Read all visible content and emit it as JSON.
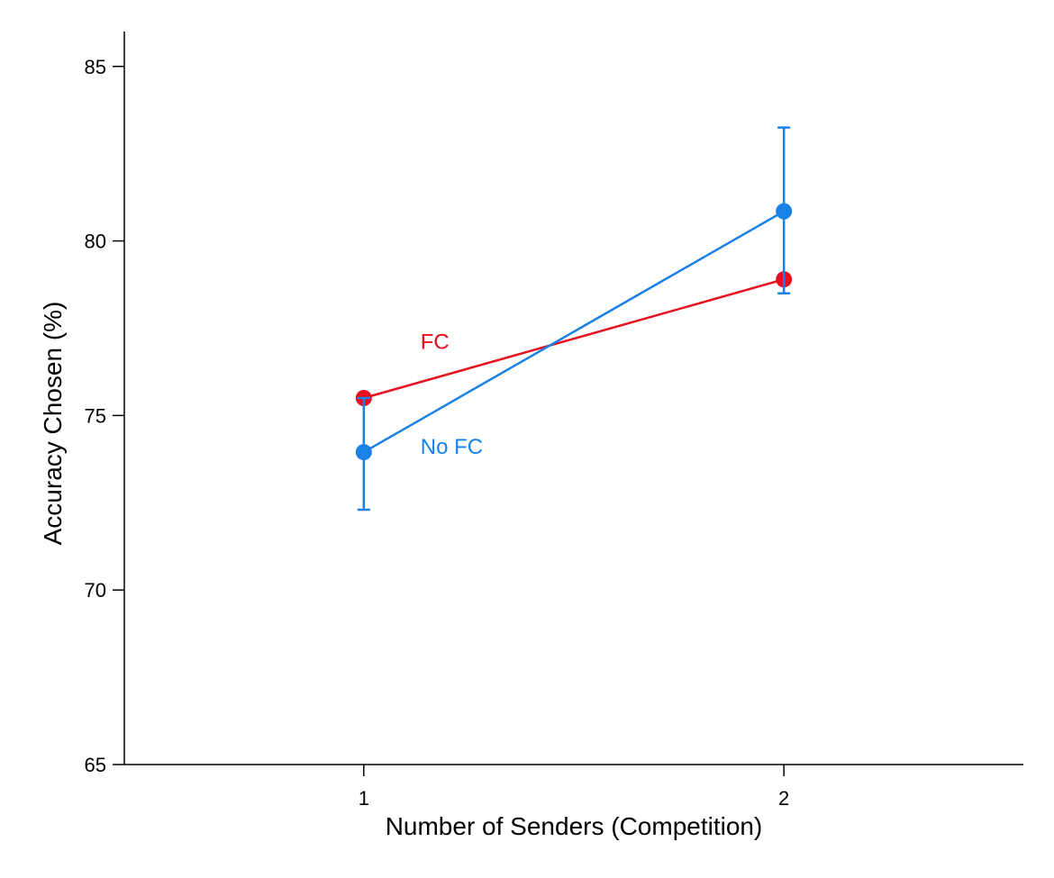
{
  "chart_data": {
    "type": "line",
    "xlabel": "Number of Senders (Competition)",
    "ylabel": "Accuracy Chosen (%)",
    "x": [
      1,
      2
    ],
    "x_tick_labels": [
      "1",
      "2"
    ],
    "xlim": [
      0.43,
      2.57
    ],
    "ylim": [
      65,
      86
    ],
    "y_ticks": [
      65,
      70,
      75,
      80,
      85
    ],
    "y_tick_labels": [
      "65",
      "70",
      "75",
      "80",
      "85"
    ],
    "grid": false,
    "legend": "none (direct labels next to lines)",
    "series": [
      {
        "name": "FC",
        "color": "#e8101f",
        "values": [
          75.5,
          78.9
        ],
        "error_bars": false
      },
      {
        "name": "No FC",
        "color": "#1a82e6",
        "values": [
          73.95,
          80.85
        ],
        "error_low": [
          72.3,
          78.5
        ],
        "error_high": [
          75.5,
          83.25
        ]
      }
    ],
    "annotations": [
      {
        "text": "FC",
        "color": "#e8101f",
        "anchor_x": 1.135,
        "anchor_y": 76.9
      },
      {
        "text": "No FC",
        "color": "#1a82e6",
        "anchor_x": 1.135,
        "anchor_y": 73.9
      }
    ]
  }
}
